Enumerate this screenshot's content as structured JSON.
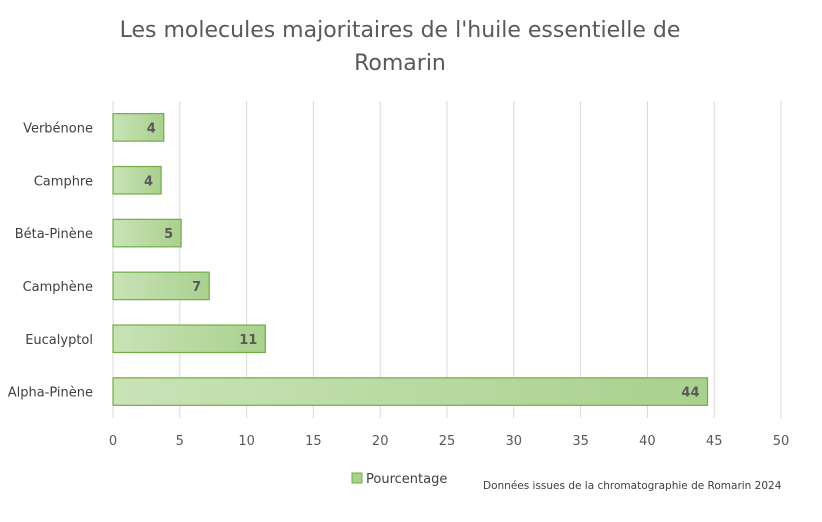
{
  "chart_data": {
    "type": "bar",
    "orientation": "horizontal",
    "title_line1": "Les molecules majoritaires de l'huile essentielle de",
    "title_line2": "Romarin",
    "categories": [
      "Alpha-Pinène",
      "Eucalyptol",
      "Camphène",
      "Béta-Pinène",
      "Camphre",
      "Verbénone"
    ],
    "series": [
      {
        "name": "Pourcentage",
        "values": [
          44.5,
          11.4,
          7.2,
          5.1,
          3.6,
          3.8
        ],
        "labels": [
          "44",
          "11",
          "7",
          "5",
          "4",
          "4"
        ]
      }
    ],
    "xlim": [
      0,
      50
    ],
    "xticks": [
      "0",
      "5",
      "10",
      "15",
      "20",
      "25",
      "30",
      "35",
      "40",
      "45",
      "50"
    ],
    "grid": true,
    "legend_position": "bottom",
    "colors": {
      "bar_fill": "#a9d18e",
      "bar_border": "#70ad47",
      "grid": "#d9d9d9"
    }
  },
  "source_note": "Données issues de la chromatographie de Romarin 2024"
}
